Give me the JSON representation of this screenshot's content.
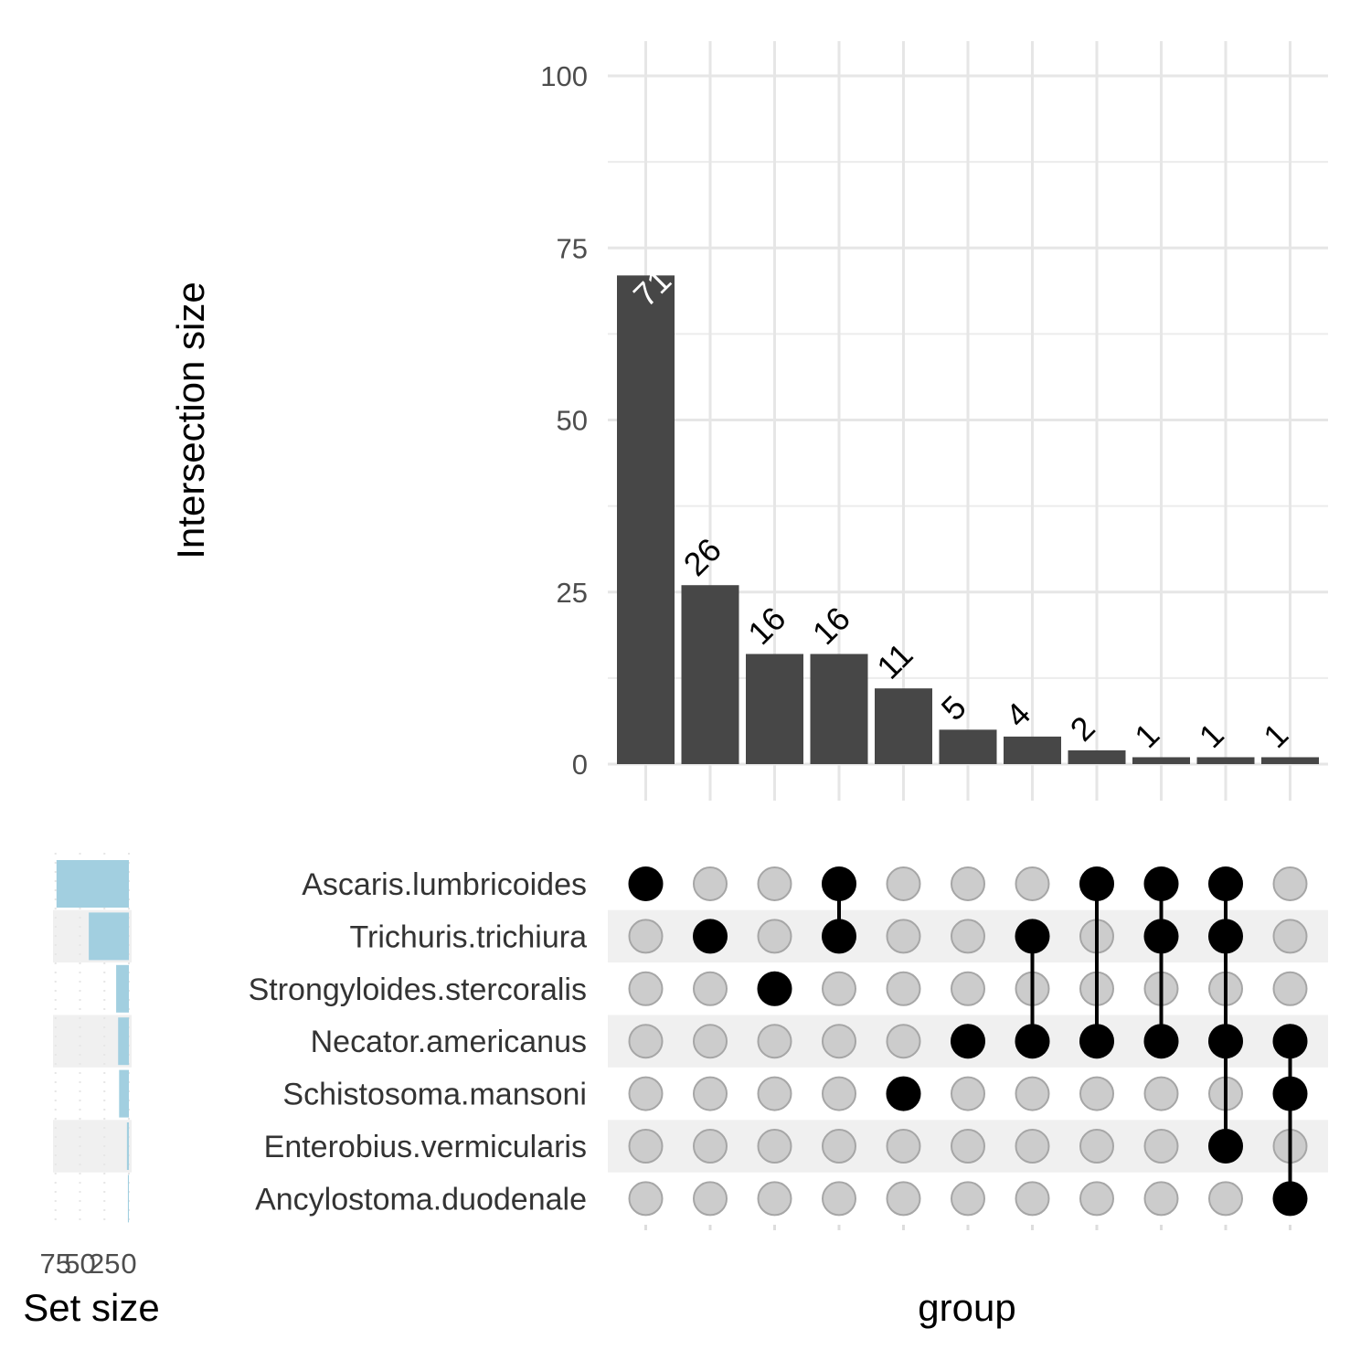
{
  "chart_data": [
    {
      "type": "bar",
      "panel": "intersection-size",
      "ylabel": "Intersection size",
      "xlabel": "group",
      "ylim": [
        0,
        100
      ],
      "yticks": [
        0,
        25,
        50,
        75,
        100
      ],
      "values": [
        71,
        26,
        16,
        16,
        11,
        5,
        4,
        2,
        1,
        1,
        1
      ],
      "value_labels": [
        "71",
        "26",
        "16",
        "16",
        "11",
        "5",
        "4",
        "2",
        "1",
        "1",
        "1"
      ],
      "bar_color": "#474747",
      "grid": true
    },
    {
      "type": "matrix",
      "panel": "intersection-matrix",
      "sets": [
        "Ascaris.lumbricoides",
        "Trichuris.trichiura",
        "Strongyloides.stercoralis",
        "Necator.americanus",
        "Schistosoma.mansoni",
        "Enterobius.vermicularis",
        "Ancylostoma.duodenale"
      ],
      "intersections": [
        [
          0
        ],
        [
          1
        ],
        [
          2
        ],
        [
          0,
          1
        ],
        [
          4
        ],
        [
          3
        ],
        [
          1,
          3
        ],
        [
          0,
          3
        ],
        [
          0,
          1,
          3
        ],
        [
          0,
          1,
          3,
          5
        ],
        [
          3,
          4,
          6
        ]
      ],
      "active_color": "#000000",
      "inactive_color": "#cccccc",
      "stripe_color": "#f0f0f0"
    },
    {
      "type": "bar",
      "panel": "set-size",
      "orientation": "horizontal-reversed",
      "xlabel": "Set size",
      "xticks": [
        75,
        50,
        25,
        0
      ],
      "xtick_labels": [
        "75",
        "50",
        "25",
        "0"
      ],
      "xlim": [
        0,
        85
      ],
      "values": [
        74,
        41,
        13,
        11,
        10,
        2,
        1
      ],
      "bar_color": "#a2cfe0"
    }
  ]
}
